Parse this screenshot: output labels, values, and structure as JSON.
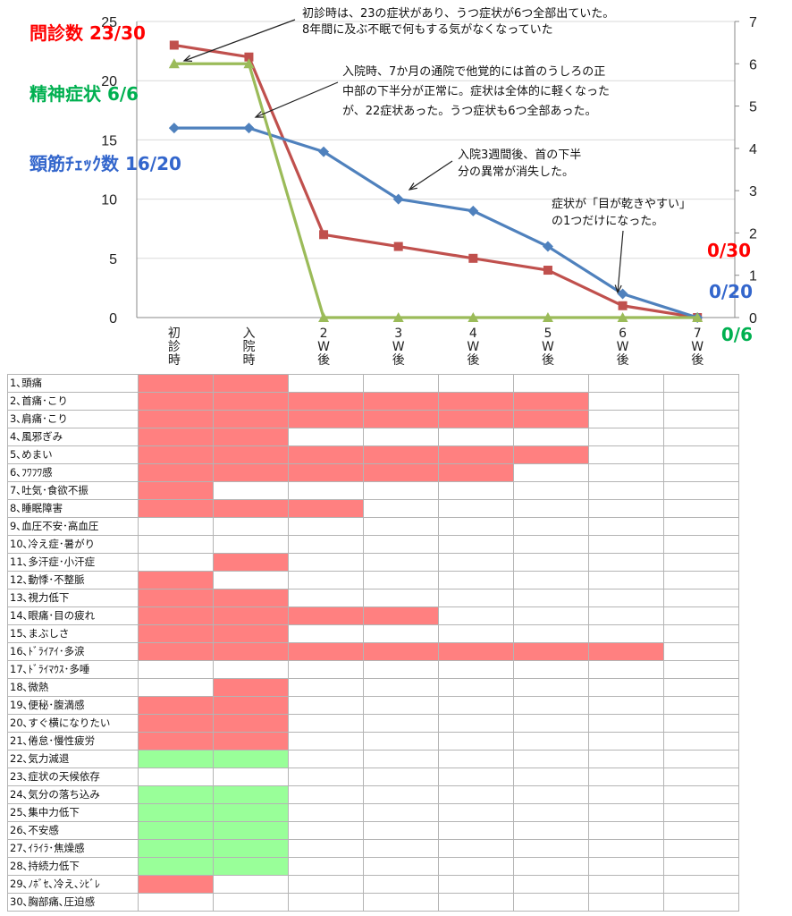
{
  "chart_data": {
    "type": "line",
    "x": [
      "初\n診\n時",
      "入\n院\n時",
      "2\nW\n後",
      "3\nW\n後",
      "4\nW\n後",
      "5\nW\n後",
      "6\nW\n後",
      "7\nW\n後"
    ],
    "ylim_left": [
      0,
      25
    ],
    "yticks_left": [
      0,
      5,
      10,
      15,
      20,
      25
    ],
    "ylim_right": [
      0,
      7
    ],
    "yticks_right": [
      0,
      1,
      2,
      3,
      4,
      5,
      6,
      7
    ],
    "grid": true,
    "series": [
      {
        "name": "問診数",
        "axis": "left",
        "color": "#c0504d",
        "marker": "square",
        "values": [
          23,
          22,
          7,
          6,
          5,
          4,
          1,
          0
        ]
      },
      {
        "name": "頸筋チェック数",
        "axis": "left",
        "color": "#4f81bd",
        "marker": "diamond",
        "values": [
          16,
          16,
          14,
          10,
          9,
          6,
          2,
          0
        ]
      },
      {
        "name": "精神症状",
        "axis": "right",
        "color": "#9bbb59",
        "marker": "triangle",
        "values": [
          6,
          6,
          0,
          0,
          0,
          0,
          0,
          0
        ]
      }
    ],
    "labels": [
      {
        "text": "問診数 23/30",
        "color": "#ff0000"
      },
      {
        "text": "精神症状 6/6",
        "color": "#00b050"
      },
      {
        "text": "頸筋ﾁｪｯｸ数 16/20",
        "color": "#3366cc"
      },
      {
        "text": "0/30",
        "color": "#ff0000"
      },
      {
        "text": "0/20",
        "color": "#3366cc"
      },
      {
        "text": "0/6",
        "color": "#00b050"
      }
    ],
    "annotations": [
      [
        "初診時は、23の症状があり、うつ症状が6つ全部出ていた。",
        "8年間に及ぶ不眠で何もする気がなくなっていた"
      ],
      [
        "入院時、7か月の通院で他覚的には首のうしろの正",
        "中部の下半分が正常に。症状は全体的に軽くなった",
        "が、22症状あった。うつ症状も6つ全部あった。"
      ],
      [
        "入院3週間後、首の下半",
        "分の異常が消失した。"
      ],
      [
        "症状が「目が乾きやすい」",
        "の1つだけになった。"
      ]
    ],
    "colors": {
      "red": "#ff8080",
      "green": "#99ff99",
      "grid": "#b4b4b4"
    },
    "symptom_table": [
      {
        "label": "1､頭痛",
        "cells": "rr"
      },
      {
        "label": "2､首痛･こり",
        "cells": "rrrrrr"
      },
      {
        "label": "3､肩痛･こり",
        "cells": "rrrrrr"
      },
      {
        "label": "4､風邪ぎみ",
        "cells": "rr"
      },
      {
        "label": "5､めまい",
        "cells": "rrrrrr"
      },
      {
        "label": "6､ﾌﾜﾌﾜ感",
        "cells": "rrrrr"
      },
      {
        "label": "7､吐気･食欲不振",
        "cells": "r"
      },
      {
        "label": "8､睡眠障害",
        "cells": "rrr"
      },
      {
        "label": "9､血圧不安･高血圧",
        "cells": ""
      },
      {
        "label": "10､冷え症･暑がり",
        "cells": ""
      },
      {
        "label": "11､多汗症･小汗症",
        "cells": ".r"
      },
      {
        "label": "12､動悸･不整脈",
        "cells": "r"
      },
      {
        "label": "13､視力低下",
        "cells": "rr"
      },
      {
        "label": "14､眼痛･目の疲れ",
        "cells": "rrrr"
      },
      {
        "label": "15､まぶしさ",
        "cells": "rr"
      },
      {
        "label": "16､ﾄﾞﾗｲｱｲ･多涙",
        "cells": "rrrrrrr"
      },
      {
        "label": "17､ﾄﾞﾗｲﾏｳｽ･多唾",
        "cells": ""
      },
      {
        "label": "18､微熱",
        "cells": ".r"
      },
      {
        "label": "19､便秘･腹満感",
        "cells": "rr"
      },
      {
        "label": "20､すぐ横になりたい",
        "cells": "rr"
      },
      {
        "label": "21､倦怠･慢性疲労",
        "cells": "rr"
      },
      {
        "label": "22､気力減退",
        "cells": "gg"
      },
      {
        "label": "23､症状の天候依存",
        "cells": ""
      },
      {
        "label": "24､気分の落ち込み",
        "cells": "gg"
      },
      {
        "label": "25､集中力低下",
        "cells": "gg"
      },
      {
        "label": "26､不安感",
        "cells": "gg"
      },
      {
        "label": "27､ｲﾗｲﾗ･焦燥感",
        "cells": "gg"
      },
      {
        "label": "28､持続力低下",
        "cells": "gg"
      },
      {
        "label": "29､ﾉﾎﾞｾ､冷え､ｼﾋﾞﾚ",
        "cells": "r"
      },
      {
        "label": "30､胸部痛､圧迫感",
        "cells": ""
      }
    ]
  }
}
